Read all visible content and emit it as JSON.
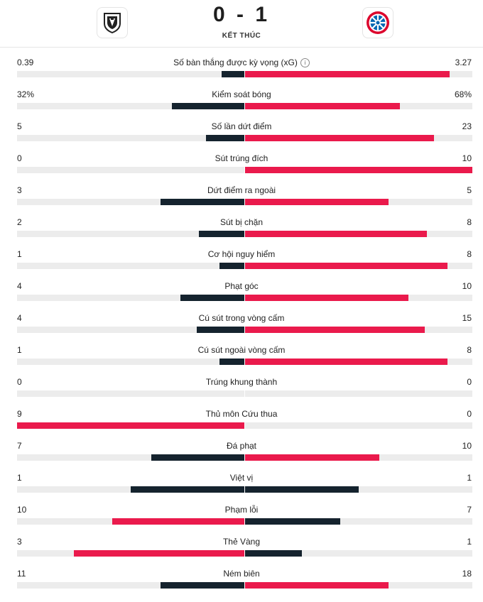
{
  "match": {
    "score": "0 - 1",
    "status": "KẾT THÚC",
    "home_logo_icon": "borussia-monchengladbach-logo-icon",
    "away_logo_icon": "bayern-munich-logo-icon"
  },
  "colors": {
    "dark": "#15232e",
    "red": "#ea1a4c",
    "track": "#ececec"
  },
  "stats": [
    {
      "label": "Số bàn thắng được kỳ vọng (xG)",
      "home": "0.39",
      "away": "3.27",
      "home_frac": 0.1,
      "away_frac": 0.9,
      "home_color": "dark",
      "away_color": "red",
      "info": true
    },
    {
      "label": "Kiểm soát bóng",
      "home": "32%",
      "away": "68%",
      "home_frac": 0.32,
      "away_frac": 0.68,
      "home_color": "dark",
      "away_color": "red"
    },
    {
      "label": "Số lần dứt điểm",
      "home": "5",
      "away": "23",
      "home_frac": 0.17,
      "away_frac": 0.83,
      "home_color": "dark",
      "away_color": "red"
    },
    {
      "label": "Sút trúng đích",
      "home": "0",
      "away": "10",
      "home_frac": 0.0,
      "away_frac": 1.0,
      "home_color": "dark",
      "away_color": "red"
    },
    {
      "label": "Dứt điểm ra ngoài",
      "home": "3",
      "away": "5",
      "home_frac": 0.37,
      "away_frac": 0.63,
      "home_color": "dark",
      "away_color": "red"
    },
    {
      "label": "Sút bị chặn",
      "home": "2",
      "away": "8",
      "home_frac": 0.2,
      "away_frac": 0.8,
      "home_color": "dark",
      "away_color": "red"
    },
    {
      "label": "Cơ hội nguy hiểm",
      "home": "1",
      "away": "8",
      "home_frac": 0.11,
      "away_frac": 0.89,
      "home_color": "dark",
      "away_color": "red"
    },
    {
      "label": "Phạt góc",
      "home": "4",
      "away": "10",
      "home_frac": 0.28,
      "away_frac": 0.72,
      "home_color": "dark",
      "away_color": "red"
    },
    {
      "label": "Cú sút trong vòng cấm",
      "home": "4",
      "away": "15",
      "home_frac": 0.21,
      "away_frac": 0.79,
      "home_color": "dark",
      "away_color": "red"
    },
    {
      "label": "Cú sút ngoài vòng cấm",
      "home": "1",
      "away": "8",
      "home_frac": 0.11,
      "away_frac": 0.89,
      "home_color": "dark",
      "away_color": "red"
    },
    {
      "label": "Trúng khung thành",
      "home": "0",
      "away": "0",
      "home_frac": 0.0,
      "away_frac": 0.0,
      "home_color": "dark",
      "away_color": "red"
    },
    {
      "label": "Thủ môn Cứu thua",
      "home": "9",
      "away": "0",
      "home_frac": 1.0,
      "away_frac": 0.0,
      "home_color": "red",
      "away_color": "dark"
    },
    {
      "label": "Đá phạt",
      "home": "7",
      "away": "10",
      "home_frac": 0.41,
      "away_frac": 0.59,
      "home_color": "dark",
      "away_color": "red"
    },
    {
      "label": "Việt vị",
      "home": "1",
      "away": "1",
      "home_frac": 0.5,
      "away_frac": 0.5,
      "home_color": "dark",
      "away_color": "dark"
    },
    {
      "label": "Phạm lỗi",
      "home": "10",
      "away": "7",
      "home_frac": 0.58,
      "away_frac": 0.42,
      "home_color": "red",
      "away_color": "dark"
    },
    {
      "label": "Thẻ Vàng",
      "home": "3",
      "away": "1",
      "home_frac": 0.75,
      "away_frac": 0.25,
      "home_color": "red",
      "away_color": "dark"
    },
    {
      "label": "Ném biên",
      "home": "11",
      "away": "18",
      "home_frac": 0.37,
      "away_frac": 0.63,
      "home_color": "dark",
      "away_color": "red"
    }
  ]
}
